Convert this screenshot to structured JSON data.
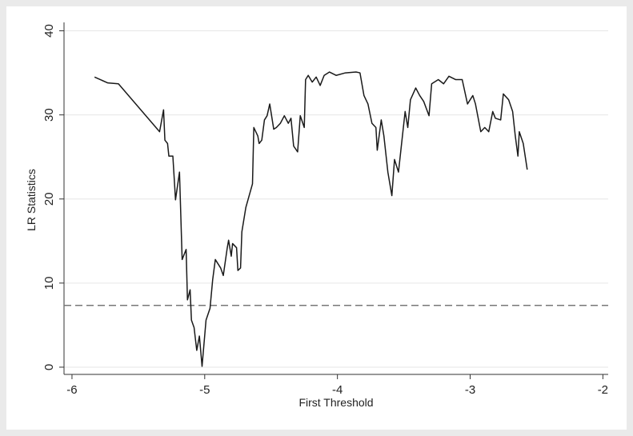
{
  "chart_data": {
    "type": "line",
    "x_label": "First Threshold",
    "y_label": "LR Statistics",
    "xlim": [
      -6.06,
      -1.96
    ],
    "ylim": [
      -0.86,
      41
    ],
    "xticks": [
      -6,
      -5,
      -4,
      -3,
      -2
    ],
    "yticks": [
      0,
      10,
      20,
      30,
      40
    ],
    "grid": true,
    "color": "#1a1a1a",
    "reference_line": 7.35,
    "reference_color": "#777777",
    "x": [
      -5.83,
      -5.73,
      -5.65,
      -5.34,
      -5.31,
      -5.3,
      -5.28,
      -5.27,
      -5.24,
      -5.22,
      -5.19,
      -5.17,
      -5.14,
      -5.13,
      -5.11,
      -5.1,
      -5.08,
      -5.06,
      -5.04,
      -5.02,
      -4.99,
      -4.96,
      -4.94,
      -4.92,
      -4.88,
      -4.86,
      -4.83,
      -4.82,
      -4.8,
      -4.79,
      -4.76,
      -4.75,
      -4.73,
      -4.72,
      -4.69,
      -4.64,
      -4.63,
      -4.6,
      -4.59,
      -4.57,
      -4.55,
      -4.53,
      -4.51,
      -4.48,
      -4.46,
      -4.43,
      -4.4,
      -4.37,
      -4.35,
      -4.33,
      -4.3,
      -4.28,
      -4.25,
      -4.24,
      -4.22,
      -4.19,
      -4.16,
      -4.13,
      -4.1,
      -4.06,
      -4.01,
      -3.94,
      -3.86,
      -3.83,
      -3.8,
      -3.77,
      -3.74,
      -3.71,
      -3.7,
      -3.67,
      -3.65,
      -3.62,
      -3.59,
      -3.57,
      -3.54,
      -3.52,
      -3.49,
      -3.47,
      -3.45,
      -3.41,
      -3.38,
      -3.35,
      -3.31,
      -3.29,
      -3.24,
      -3.2,
      -3.16,
      -3.11,
      -3.06,
      -3.02,
      -2.98,
      -2.96,
      -2.92,
      -2.89,
      -2.86,
      -2.83,
      -2.81,
      -2.77,
      -2.75,
      -2.71,
      -2.68,
      -2.66,
      -2.64,
      -2.63,
      -2.6,
      -2.57
    ],
    "values": [
      34.5,
      33.8,
      33.7,
      28.0,
      30.6,
      27.0,
      26.6,
      25.1,
      25.1,
      19.9,
      23.2,
      12.8,
      14.0,
      8.0,
      9.2,
      5.6,
      4.7,
      2.0,
      3.7,
      0.1,
      5.6,
      7.0,
      10.4,
      12.8,
      11.8,
      10.9,
      14.2,
      15.1,
      13.2,
      14.7,
      14.2,
      11.5,
      11.8,
      16.1,
      19.0,
      21.8,
      28.5,
      27.5,
      26.6,
      27.0,
      29.4,
      29.9,
      31.3,
      28.3,
      28.5,
      29.0,
      29.9,
      29.0,
      29.6,
      26.3,
      25.6,
      29.9,
      28.5,
      34.2,
      34.7,
      33.9,
      34.5,
      33.5,
      34.7,
      35.1,
      34.7,
      35.0,
      35.1,
      35.0,
      32.3,
      31.3,
      29.0,
      28.5,
      25.8,
      29.4,
      27.5,
      23.2,
      20.4,
      24.7,
      23.2,
      26.1,
      30.4,
      28.5,
      31.8,
      33.2,
      32.3,
      31.6,
      29.9,
      33.7,
      34.2,
      33.7,
      34.6,
      34.2,
      34.2,
      31.3,
      32.3,
      31.3,
      28.0,
      28.5,
      28.0,
      30.4,
      29.6,
      29.4,
      32.5,
      31.8,
      30.4,
      27.5,
      25.1,
      28.0,
      26.6,
      23.5
    ]
  }
}
